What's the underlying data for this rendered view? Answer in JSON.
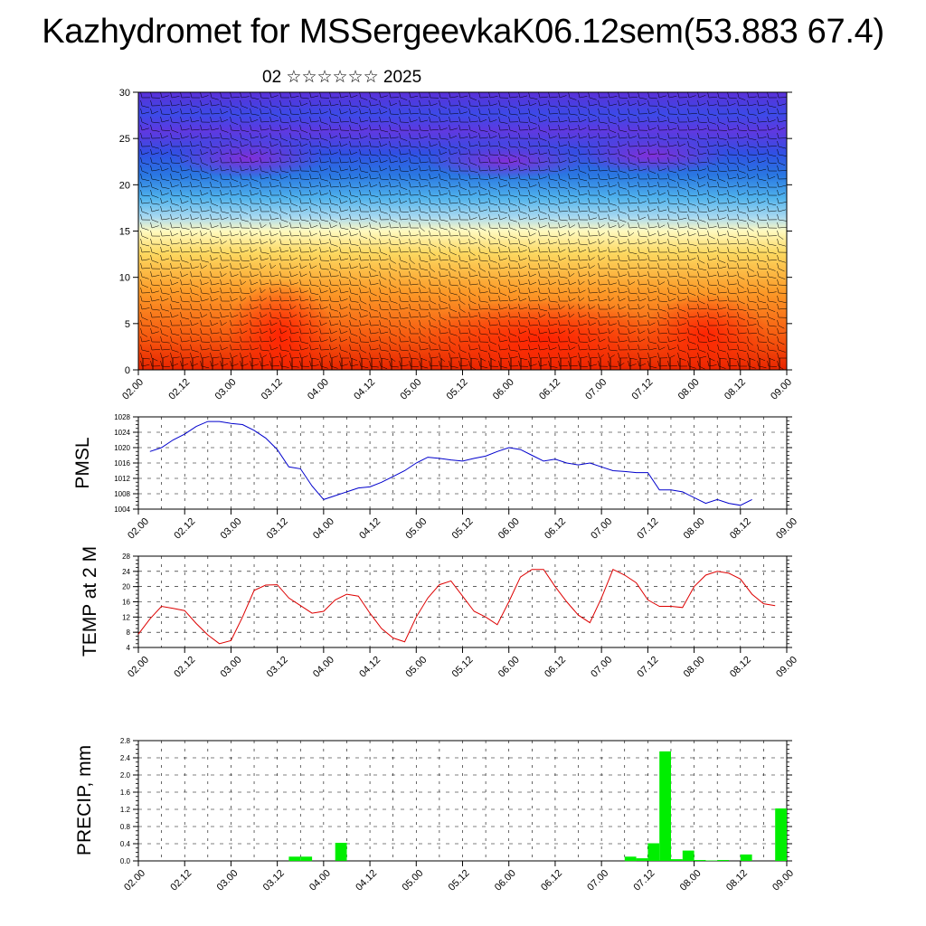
{
  "title": "Kazhydromet for MSSergeevkaK06.12sem(53.883 67.4)",
  "subtitle": "02 ☆☆☆☆☆☆ 2025",
  "colors": {
    "pmsl_line": "#0000cc",
    "temp_line": "#dd0000",
    "precip_bar": "#00ee00"
  },
  "chart_data": [
    {
      "type": "heatmap",
      "name": "cross-section",
      "x_ticks": [
        "02.00",
        "02.12",
        "03.00",
        "03.12",
        "04.00",
        "04.12",
        "05.00",
        "05.12",
        "06.00",
        "06.12",
        "07.00",
        "07.12",
        "08.00",
        "08.12",
        "09.00"
      ],
      "ylim": [
        0,
        30
      ],
      "y_ticks": [
        0,
        5,
        10,
        15,
        20,
        25,
        30
      ],
      "xlabel": "",
      "ylabel": ""
    },
    {
      "type": "line",
      "ylabel": "PMSL",
      "ylim": [
        1004,
        1028
      ],
      "y_ticks": [
        1004,
        1008,
        1012,
        1016,
        1020,
        1024,
        1028
      ],
      "x_ticks": [
        "02.00",
        "02.12",
        "03.00",
        "03.12",
        "04.00",
        "04.12",
        "05.00",
        "05.12",
        "06.00",
        "06.12",
        "07.00",
        "07.12",
        "08.00",
        "08.12",
        "09.00"
      ],
      "x_step_hours": 3,
      "series": [
        {
          "values": [
            1019.0,
            1020.0,
            1022.0,
            1023.5,
            1025.5,
            1026.8,
            1026.8,
            1026.3,
            1026.0,
            1024.5,
            1022.5,
            1019.5,
            1015.0,
            1014.5,
            1010.0,
            1006.5,
            1007.5,
            1008.5,
            1009.5,
            1009.8,
            1011.0,
            1012.5,
            1014.0,
            1016.0,
            1017.5,
            1017.2,
            1016.8,
            1016.5,
            1017.2,
            1017.8,
            1019.0,
            1020.0,
            1019.5,
            1018.0,
            1016.5,
            1017.0,
            1016.0,
            1015.5,
            1016.0,
            1015.0,
            1014.0,
            1013.8,
            1013.5,
            1013.5,
            1009.0,
            1009.0,
            1008.5,
            1007.0,
            1005.5,
            1006.5,
            1005.5,
            1005.0,
            1006.5
          ]
        }
      ]
    },
    {
      "type": "line",
      "ylabel": "TEMP at 2 M",
      "ylim": [
        4,
        28
      ],
      "y_ticks": [
        4,
        8,
        12,
        16,
        20,
        24,
        28
      ],
      "x_ticks": [
        "02.00",
        "02.12",
        "03.00",
        "03.12",
        "04.00",
        "04.12",
        "05.00",
        "05.12",
        "06.00",
        "06.12",
        "07.00",
        "07.12",
        "08.00",
        "08.12",
        "09.00"
      ],
      "x_step_hours": 3,
      "series": [
        {
          "values": [
            7.5,
            11.5,
            14.8,
            14.3,
            13.7,
            10.3,
            7.3,
            5.0,
            5.8,
            12.0,
            19.0,
            20.4,
            20.5,
            17.0,
            15.0,
            13.0,
            13.5,
            16.5,
            18.0,
            17.5,
            13.0,
            9.0,
            6.5,
            5.5,
            12.0,
            17.0,
            20.5,
            21.5,
            17.5,
            13.5,
            12.0,
            10.0,
            16.0,
            22.5,
            24.5,
            24.5,
            20.0,
            16.0,
            12.5,
            10.5,
            17.0,
            24.5,
            23.0,
            21.0,
            16.5,
            14.8,
            14.8,
            14.5,
            20.0,
            23.0,
            24.0,
            23.5,
            22.0,
            18.0,
            15.5,
            15.0
          ]
        }
      ]
    },
    {
      "type": "bar",
      "ylabel": "PRECIP, mm",
      "ylim": [
        0,
        2.8
      ],
      "y_ticks": [
        "0.0",
        "0.4",
        "0.8",
        "1.2",
        "1.6",
        "2.0",
        "2.4",
        "2.8"
      ],
      "x_ticks": [
        "02.00",
        "02.12",
        "03.00",
        "03.12",
        "04.00",
        "04.12",
        "05.00",
        "05.12",
        "06.00",
        "06.12",
        "07.00",
        "07.12",
        "08.00",
        "08.12",
        "09.00"
      ],
      "bar_step_hours": 3,
      "values": [
        0,
        0,
        0,
        0,
        0,
        0,
        0,
        0,
        0,
        0,
        0,
        0,
        0,
        0,
        0.1,
        0.1,
        0,
        0,
        0.42,
        0,
        0,
        0,
        0,
        0,
        0,
        0,
        0,
        0,
        0,
        0,
        0,
        0,
        0,
        0,
        0,
        0,
        0,
        0,
        0,
        0,
        0,
        0,
        0,
        0.1,
        0.06,
        0.41,
        2.55,
        0.04,
        0.24,
        0.02,
        0.01,
        0.02,
        0,
        0.15,
        0,
        0,
        1.22
      ]
    }
  ]
}
